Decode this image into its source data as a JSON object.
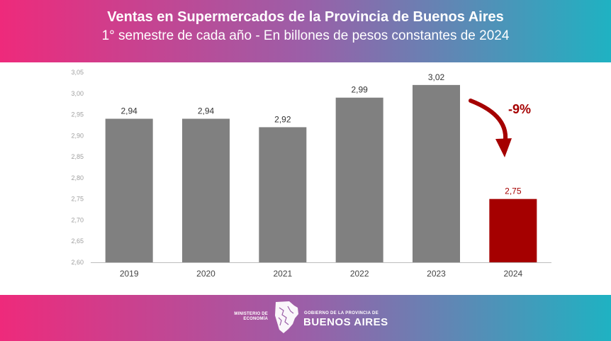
{
  "header": {
    "title": "Ventas en Supermercados de la Provincia de Buenos Aires",
    "subtitle": "1° semestre de cada año - En billones de pesos constantes de 2024"
  },
  "chart_data": {
    "type": "bar",
    "title": "Ventas en Supermercados de la Provincia de Buenos Aires",
    "subtitle": "1° semestre de cada año - En billones de pesos constantes de 2024",
    "categories": [
      "2019",
      "2020",
      "2021",
      "2022",
      "2023",
      "2024"
    ],
    "values": [
      2.94,
      2.94,
      2.92,
      2.99,
      3.02,
      2.75
    ],
    "value_labels": [
      "2,94",
      "2,94",
      "2,92",
      "2,99",
      "3,02",
      "2,75"
    ],
    "yticks": [
      "2,60",
      "2,65",
      "2,70",
      "2,75",
      "2,80",
      "2,85",
      "2,90",
      "2,95",
      "3,00",
      "3,05"
    ],
    "ylim": [
      2.6,
      3.05
    ],
    "xlabel": "",
    "ylabel": "",
    "grid": false,
    "colors": {
      "default": "#808080",
      "highlight": "#a50000"
    },
    "highlight_index": 5,
    "annotation": {
      "text": "-9%",
      "color": "#a50000"
    }
  },
  "footer": {
    "ministerio": "MINISTERIO DE ECONOMÍA",
    "gobierno": "GOBIERNO DE LA PROVINCIA DE",
    "buenos_aires": "BUENOS AIRES",
    "logo_icon": "province-map-icon"
  }
}
